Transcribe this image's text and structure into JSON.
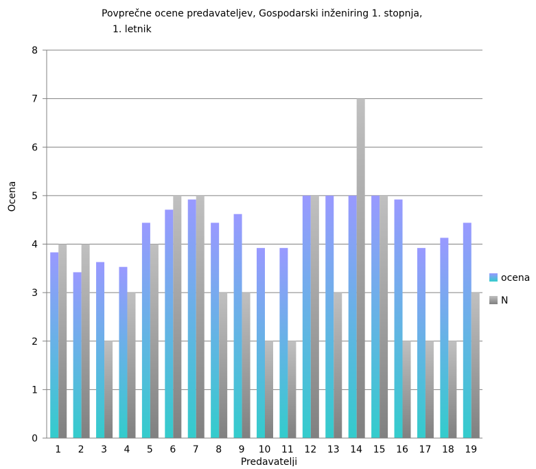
{
  "chart_data": {
    "type": "bar",
    "title_line1": "Povprečne ocene predavateljev, Gospodarski inženiring 1. stopnja,",
    "title_line2": "1. letnik",
    "xlabel": "Predavatelji",
    "ylabel": "Ocena",
    "ylim": [
      0,
      8
    ],
    "yticks": [
      "0",
      "1",
      "2",
      "3",
      "4",
      "5",
      "6",
      "7",
      "8"
    ],
    "grid": true,
    "legend_position": "right",
    "categories": [
      "1",
      "2",
      "3",
      "4",
      "5",
      "6",
      "7",
      "8",
      "9",
      "10",
      "11",
      "12",
      "13",
      "14",
      "15",
      "16",
      "17",
      "18",
      "19"
    ],
    "series": [
      {
        "name": "ocena",
        "colors": {
          "top": "#9999ff",
          "bottom": "#33cccc"
        },
        "values": [
          3.83,
          3.42,
          3.63,
          3.53,
          4.44,
          4.71,
          4.92,
          4.44,
          4.62,
          3.92,
          3.92,
          5.0,
          5.0,
          5.0,
          5.0,
          4.92,
          3.92,
          4.13,
          4.44
        ]
      },
      {
        "name": "N",
        "colors": {
          "top": "#c0c0c0",
          "bottom": "#808080"
        },
        "values": [
          4,
          4,
          2,
          3,
          4,
          5,
          5,
          3,
          3,
          2,
          2,
          5,
          3,
          7,
          5,
          2,
          2,
          2,
          3
        ]
      }
    ]
  }
}
